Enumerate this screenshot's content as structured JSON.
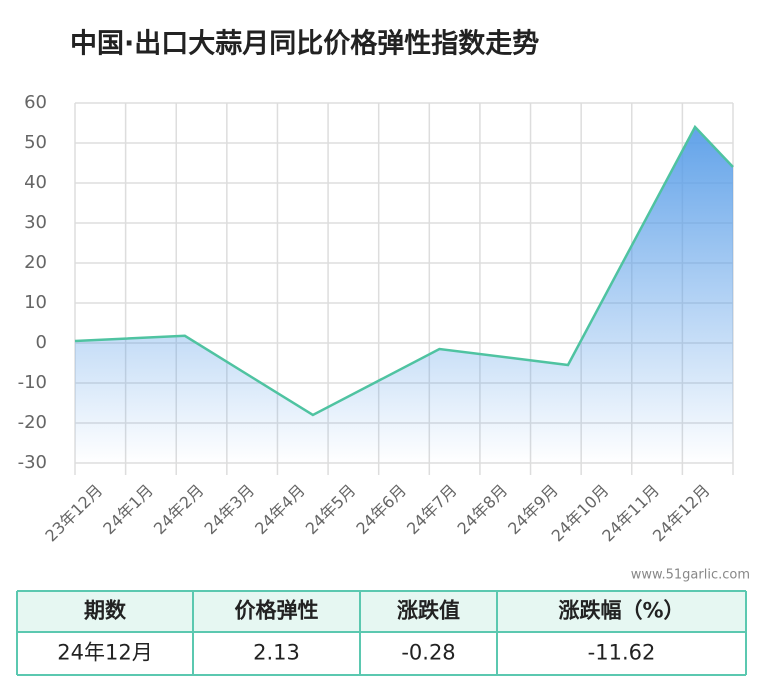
{
  "chart_data": {
    "type": "area",
    "title": "中国·出口大蒜月同比价格弹性指数走势",
    "x": [
      0,
      2.17,
      4.7,
      7.2,
      9.74,
      12.25,
      13
    ],
    "values": [
      0.5,
      1.8,
      -18,
      -1.5,
      -5.5,
      54,
      44
    ],
    "color": "#4fc3a1",
    "area_color": "#5a9ee8",
    "xlim": [
      0,
      13
    ],
    "xticks": [
      {
        "value": 0.5,
        "label": "23年12月"
      },
      {
        "value": 1.5,
        "label": "24年1月"
      },
      {
        "value": 2.5,
        "label": "24年2月"
      },
      {
        "value": 3.5,
        "label": "24年3月"
      },
      {
        "value": 4.5,
        "label": "24年4月"
      },
      {
        "value": 5.5,
        "label": "24年5月"
      },
      {
        "value": 6.5,
        "label": "24年6月"
      },
      {
        "value": 7.5,
        "label": "24年7月"
      },
      {
        "value": 8.5,
        "label": "24年8月"
      },
      {
        "value": 9.5,
        "label": "24年9月"
      },
      {
        "value": 10.5,
        "label": "24年10月"
      },
      {
        "value": 11.5,
        "label": "24年11月"
      },
      {
        "value": 12.5,
        "label": "24年12月"
      }
    ],
    "ylim": [
      -30,
      60
    ],
    "yticks": [
      -30,
      -20,
      -10,
      0,
      10,
      20,
      30,
      40,
      50,
      60
    ],
    "grid": true,
    "watermark": "www.51garlic.com"
  },
  "table": {
    "headers": [
      "期数",
      "价格弹性",
      "涨跌值",
      "涨跌幅（%）"
    ],
    "rows": [
      [
        "24年12月",
        "2.13",
        "-0.28",
        "-11.62"
      ]
    ]
  }
}
